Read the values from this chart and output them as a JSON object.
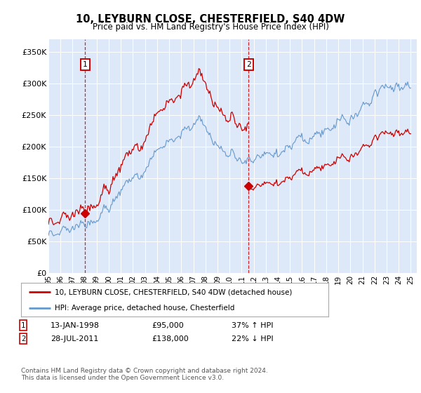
{
  "title": "10, LEYBURN CLOSE, CHESTERFIELD, S40 4DW",
  "subtitle": "Price paid vs. HM Land Registry's House Price Index (HPI)",
  "legend_line1": "10, LEYBURN CLOSE, CHESTERFIELD, S40 4DW (detached house)",
  "legend_line2": "HPI: Average price, detached house, Chesterfield",
  "transaction1_date": "13-JAN-1998",
  "transaction1_price": "£95,000",
  "transaction1_hpi": "37% ↑ HPI",
  "transaction1_x": 1998.04,
  "transaction1_y": 95000,
  "transaction2_date": "28-JUL-2011",
  "transaction2_price": "£138,000",
  "transaction2_hpi": "22% ↓ HPI",
  "transaction2_x": 2011.58,
  "transaction2_y": 138000,
  "copyright": "Contains HM Land Registry data © Crown copyright and database right 2024.\nThis data is licensed under the Open Government Licence v3.0.",
  "bg_color": "#dde8f8",
  "fig_color": "#ffffff",
  "red_line_color": "#cc0000",
  "blue_line_color": "#6699cc",
  "ylim": [
    0,
    370000
  ],
  "yticks": [
    0,
    50000,
    100000,
    150000,
    200000,
    250000,
    300000,
    350000
  ],
  "xlim_start": 1995.0,
  "xlim_end": 2025.5,
  "marker_y": 330000
}
